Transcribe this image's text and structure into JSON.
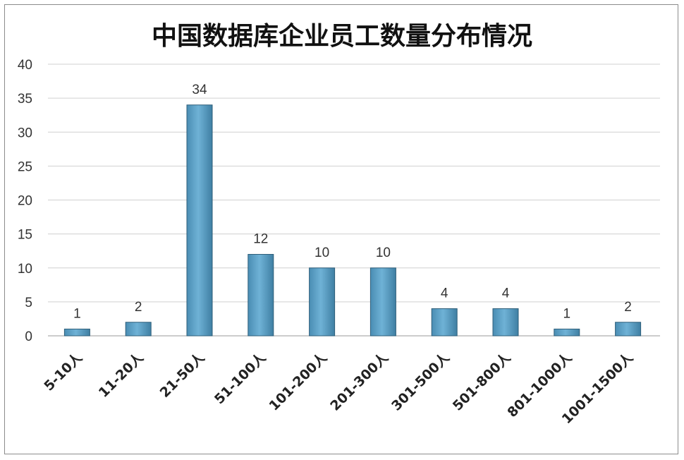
{
  "chart_data": {
    "type": "bar",
    "title": "中国数据库企业员工数量分布情况",
    "categories": [
      "5-10人",
      "11-20人",
      "21-50人",
      "51-100人",
      "101-200人",
      "201-300人",
      "301-500人",
      "501-800人",
      "801-1000人",
      "1001-1500人"
    ],
    "values": [
      1,
      2,
      34,
      12,
      10,
      10,
      4,
      4,
      1,
      2
    ],
    "ylim": [
      0,
      40
    ],
    "yticks": [
      0,
      5,
      10,
      15,
      20,
      25,
      30,
      35,
      40
    ],
    "grid": true,
    "xlabel": "",
    "ylabel": "",
    "bar_color": "#5a9fc4",
    "bar_edge_color": "#2f5f7a"
  }
}
